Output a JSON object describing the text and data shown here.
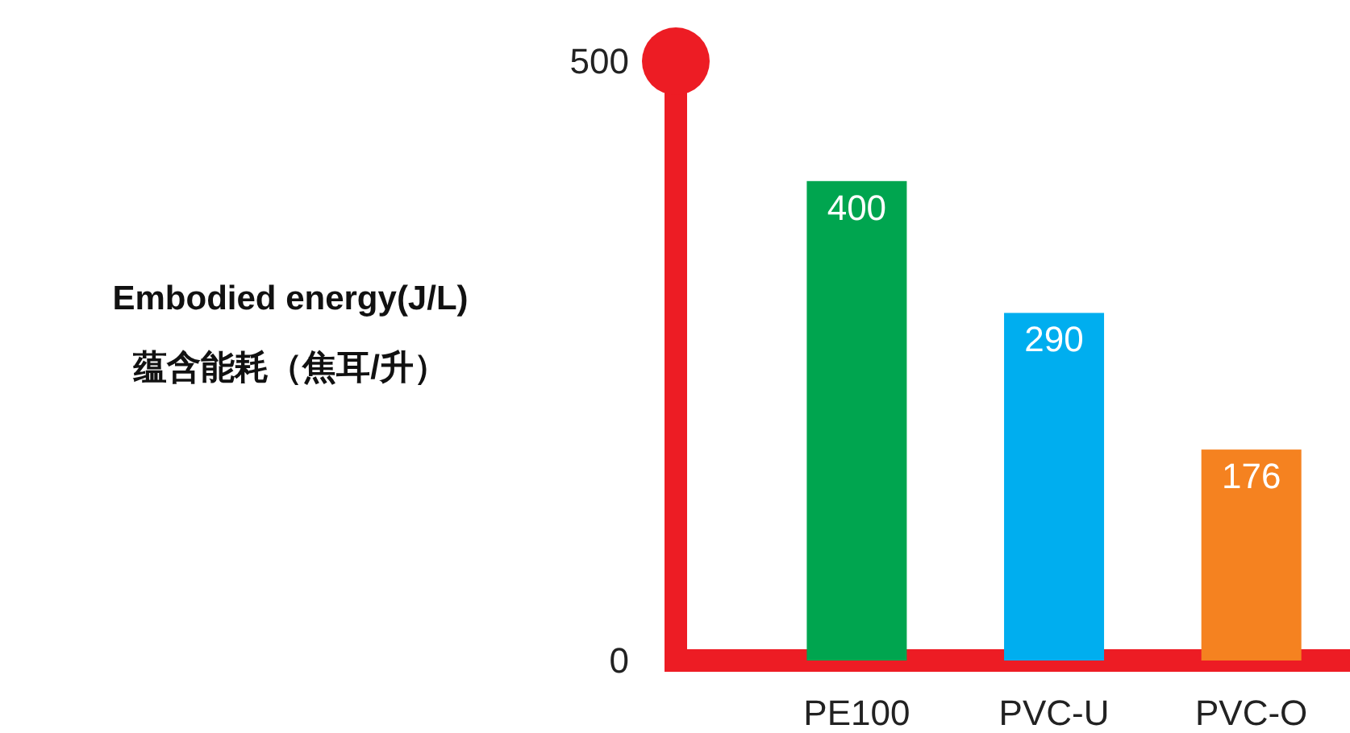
{
  "chart_data": {
    "type": "bar",
    "ylabel": "Embodied energy(J/L)\n蕴含能耗（焦耳/升）",
    "categories": [
      "PE100",
      "PVC-U",
      "PVC-O"
    ],
    "values": [
      400,
      290,
      176
    ],
    "colors": [
      "#00a54f",
      "#00aeef",
      "#f58220"
    ],
    "ylim": [
      0,
      500
    ],
    "yticks": [
      0,
      500
    ],
    "data_labels": true
  }
}
